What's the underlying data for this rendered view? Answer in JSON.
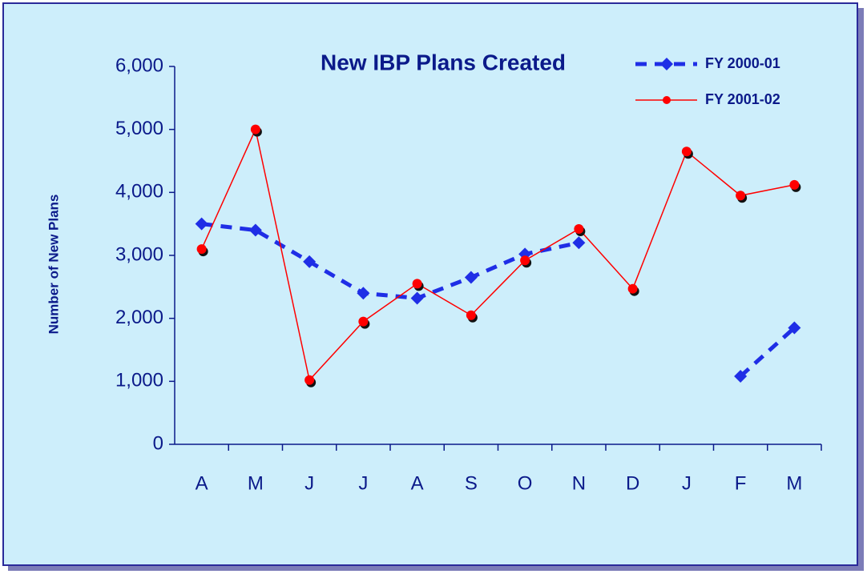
{
  "chart_data": {
    "type": "line",
    "title": "New IBP Plans Created",
    "y_label": "Number of New Plans",
    "categories": [
      "A",
      "M",
      "J",
      "J",
      "A",
      "S",
      "O",
      "N",
      "D",
      "J",
      "F",
      "M"
    ],
    "series": [
      {
        "name": "FY 2000-01",
        "color": "#1f2ee6",
        "values": [
          3500,
          3400,
          2900,
          2400,
          2320,
          2650,
          3020,
          3200,
          null,
          null,
          1080,
          1850
        ]
      },
      {
        "name": "FY 2001-02",
        "color": "#ff0000",
        "values": [
          3100,
          5000,
          1020,
          1950,
          2550,
          2050,
          2920,
          3420,
          2470,
          4650,
          3950,
          4120
        ]
      }
    ],
    "ylim": [
      0,
      6000
    ],
    "yticks": [
      0,
      {
        "value": 1000,
        "label": "1,000"
      },
      {
        "value": 2000,
        "label": "2,000"
      },
      {
        "value": 3000,
        "label": "3,000"
      },
      {
        "value": 4000,
        "label": "4,000"
      },
      {
        "value": 5000,
        "label": "5,000"
      },
      {
        "value": 6000,
        "label": "6,000"
      }
    ],
    "legend": "top-right"
  }
}
